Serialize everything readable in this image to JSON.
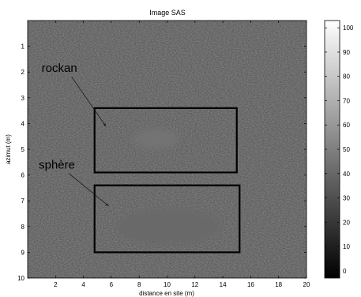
{
  "chart_data": {
    "type": "heatmap",
    "title": "Image SAS",
    "xlabel": "distance en site (m)",
    "ylabel": "azimut (m)",
    "xlim": [
      0,
      20
    ],
    "ylim": [
      10,
      0
    ],
    "y_axis_reversed": true,
    "xticks": [
      2,
      4,
      6,
      8,
      10,
      12,
      14,
      16,
      18,
      20
    ],
    "yticks": [
      1,
      2,
      3,
      4,
      5,
      6,
      7,
      8,
      9,
      10
    ],
    "colormap": "gray",
    "colorbar": {
      "range": [
        -3,
        103
      ],
      "ticks": [
        0,
        10,
        20,
        30,
        40,
        50,
        60,
        70,
        80,
        90,
        100
      ]
    },
    "background_level": 55,
    "regions": [
      {
        "label": "rockan",
        "box": {
          "x0": 4.8,
          "x1": 15.0,
          "y0": 3.4,
          "y1": 5.9
        },
        "label_at": {
          "x": 1.0,
          "y": 2.0
        },
        "arrow_to": {
          "x": 5.6,
          "y": 4.1
        },
        "shadow": {
          "cx": 9.2,
          "cy": 4.6,
          "rx": 1.6,
          "ry": 0.38,
          "level": 45
        }
      },
      {
        "label": "sphère",
        "box": {
          "x0": 4.8,
          "x1": 15.2,
          "y0": 6.4,
          "y1": 9.0
        },
        "label_at": {
          "x": 0.8,
          "y": 5.75
        },
        "arrow_to": {
          "x": 5.8,
          "y": 7.2
        },
        "shadow": {
          "cx": 10.1,
          "cy": 8.0,
          "rx": 3.7,
          "ry": 0.68,
          "level": 41
        }
      }
    ]
  }
}
